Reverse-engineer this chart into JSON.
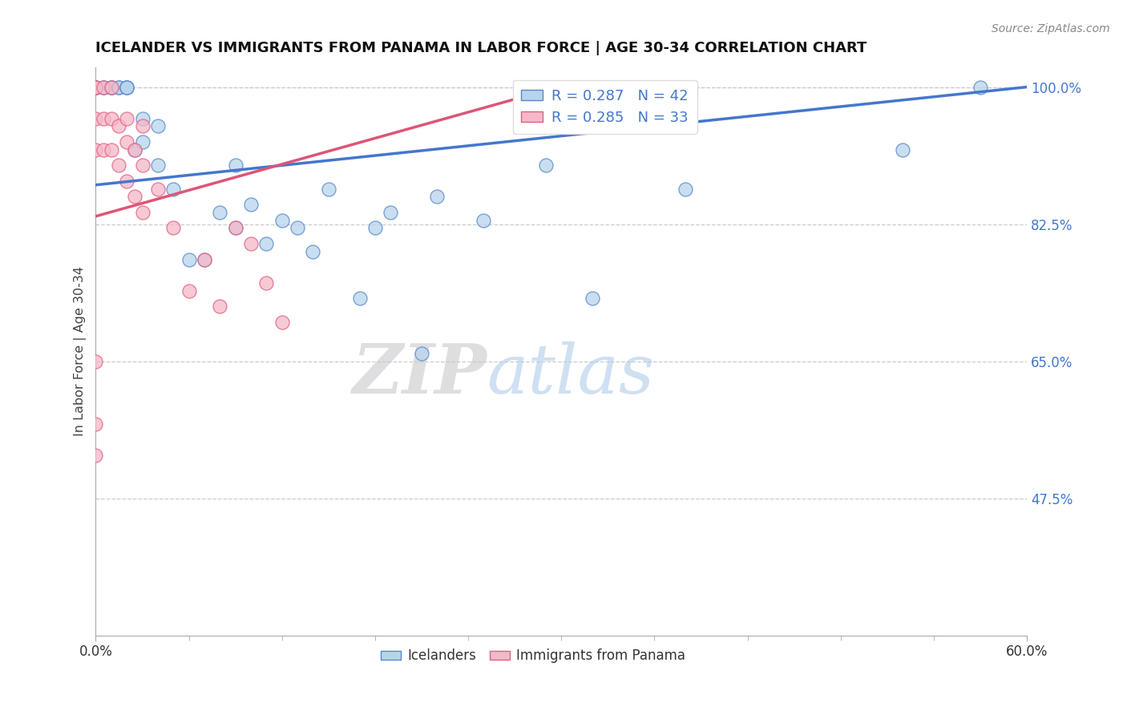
{
  "title": "ICELANDER VS IMMIGRANTS FROM PANAMA IN LABOR FORCE | AGE 30-34 CORRELATION CHART",
  "source_text": "Source: ZipAtlas.com",
  "ylabel": "In Labor Force | Age 30-34",
  "xmin": 0.0,
  "xmax": 0.6,
  "ymin": 0.3,
  "ymax": 1.025,
  "yticks": [
    0.475,
    0.65,
    0.825,
    1.0
  ],
  "ytick_labels": [
    "47.5%",
    "65.0%",
    "82.5%",
    "100.0%"
  ],
  "xtick_labels": [
    "0.0%",
    "60.0%"
  ],
  "xticks": [
    0.0,
    0.6
  ],
  "blue_r": 0.287,
  "blue_n": 42,
  "pink_r": 0.285,
  "pink_n": 33,
  "blue_color": "#b8d4ec",
  "pink_color": "#f5b8c8",
  "blue_edge_color": "#5588cc",
  "pink_edge_color": "#e06080",
  "blue_line_color": "#4477cc",
  "pink_line_color": "#dd5577",
  "legend_blue_label": "Icelanders",
  "legend_pink_label": "Immigrants from Panama",
  "watermark_zip": "ZIP",
  "watermark_atlas": "atlas",
  "blue_scatter_x": [
    0.0,
    0.0,
    0.0,
    0.0,
    0.005,
    0.005,
    0.01,
    0.01,
    0.01,
    0.015,
    0.015,
    0.02,
    0.02,
    0.02,
    0.025,
    0.03,
    0.03,
    0.04,
    0.04,
    0.05,
    0.06,
    0.07,
    0.08,
    0.09,
    0.09,
    0.1,
    0.11,
    0.12,
    0.13,
    0.14,
    0.15,
    0.17,
    0.18,
    0.19,
    0.21,
    0.22,
    0.25,
    0.29,
    0.32,
    0.38,
    0.52,
    0.57
  ],
  "blue_scatter_y": [
    1.0,
    1.0,
    1.0,
    1.0,
    1.0,
    1.0,
    1.0,
    1.0,
    1.0,
    1.0,
    1.0,
    1.0,
    1.0,
    1.0,
    0.92,
    0.93,
    0.96,
    0.9,
    0.95,
    0.87,
    0.78,
    0.78,
    0.84,
    0.82,
    0.9,
    0.85,
    0.8,
    0.83,
    0.82,
    0.79,
    0.87,
    0.73,
    0.82,
    0.84,
    0.66,
    0.86,
    0.83,
    0.9,
    0.73,
    0.87,
    0.92,
    1.0
  ],
  "pink_scatter_x": [
    0.0,
    0.0,
    0.0,
    0.0,
    0.0,
    0.005,
    0.005,
    0.005,
    0.01,
    0.01,
    0.01,
    0.015,
    0.015,
    0.02,
    0.02,
    0.02,
    0.025,
    0.025,
    0.03,
    0.03,
    0.03,
    0.04,
    0.05,
    0.06,
    0.07,
    0.08,
    0.09,
    0.1,
    0.11,
    0.12,
    0.0,
    0.0,
    0.0
  ],
  "pink_scatter_y": [
    1.0,
    1.0,
    1.0,
    0.92,
    0.96,
    0.92,
    0.96,
    1.0,
    0.92,
    0.96,
    1.0,
    0.9,
    0.95,
    0.88,
    0.93,
    0.96,
    0.86,
    0.92,
    0.84,
    0.9,
    0.95,
    0.87,
    0.82,
    0.74,
    0.78,
    0.72,
    0.82,
    0.8,
    0.75,
    0.7,
    0.65,
    0.57,
    0.53
  ],
  "blue_trendline_x": [
    0.0,
    0.6
  ],
  "blue_trendline_y": [
    0.875,
    1.0
  ],
  "pink_trendline_x": [
    0.0,
    0.28
  ],
  "pink_trendline_y": [
    0.835,
    0.99
  ]
}
